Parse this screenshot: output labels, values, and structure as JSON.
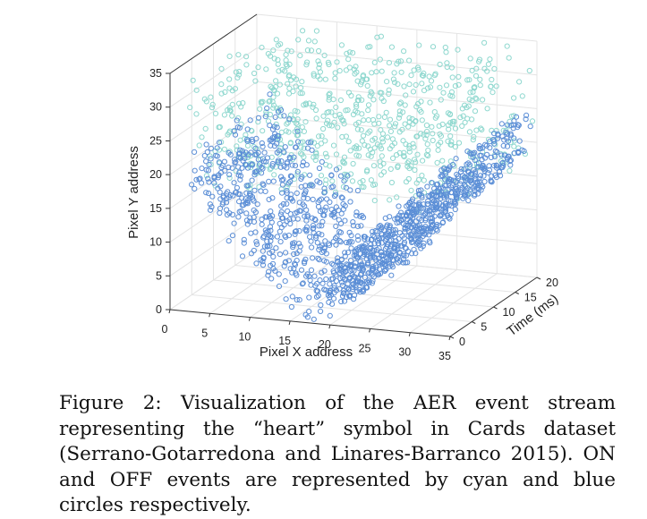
{
  "chart_data": {
    "type": "scatter",
    "title": "",
    "xlabel": "Pixel X address",
    "ylabel": "Pixel Y address",
    "zlabel": "Time (ms)",
    "xlim": [
      0,
      35
    ],
    "ylim": [
      0,
      35
    ],
    "zlim": [
      0,
      20
    ],
    "x_ticks": [
      "0",
      "5",
      "10",
      "15",
      "20",
      "25",
      "30",
      "35"
    ],
    "y_ticks": [
      "0",
      "5",
      "10",
      "15",
      "20",
      "25",
      "30",
      "35"
    ],
    "z_ticks": [
      "0",
      "5",
      "10",
      "15",
      "20"
    ],
    "grid": true,
    "marker": "open circle",
    "series": [
      {
        "name": "ON events",
        "color": "#8fd8cf",
        "count": 700,
        "y_range": [
          18,
          35
        ],
        "x_range": [
          2,
          35
        ]
      },
      {
        "name": "OFF events",
        "color": "#5b8ed6",
        "count": 1300,
        "y_range": [
          0,
          26
        ],
        "x_range": [
          2,
          35
        ],
        "shape": "heart lower V"
      }
    ]
  },
  "caption": "Figure 2: Visualization of the AER event stream representing the “heart” symbol in Cards dataset (Serrano-Gotarredona and Linares-Barranco 2015). ON and OFF events are represented by cyan and blue circles respectively."
}
